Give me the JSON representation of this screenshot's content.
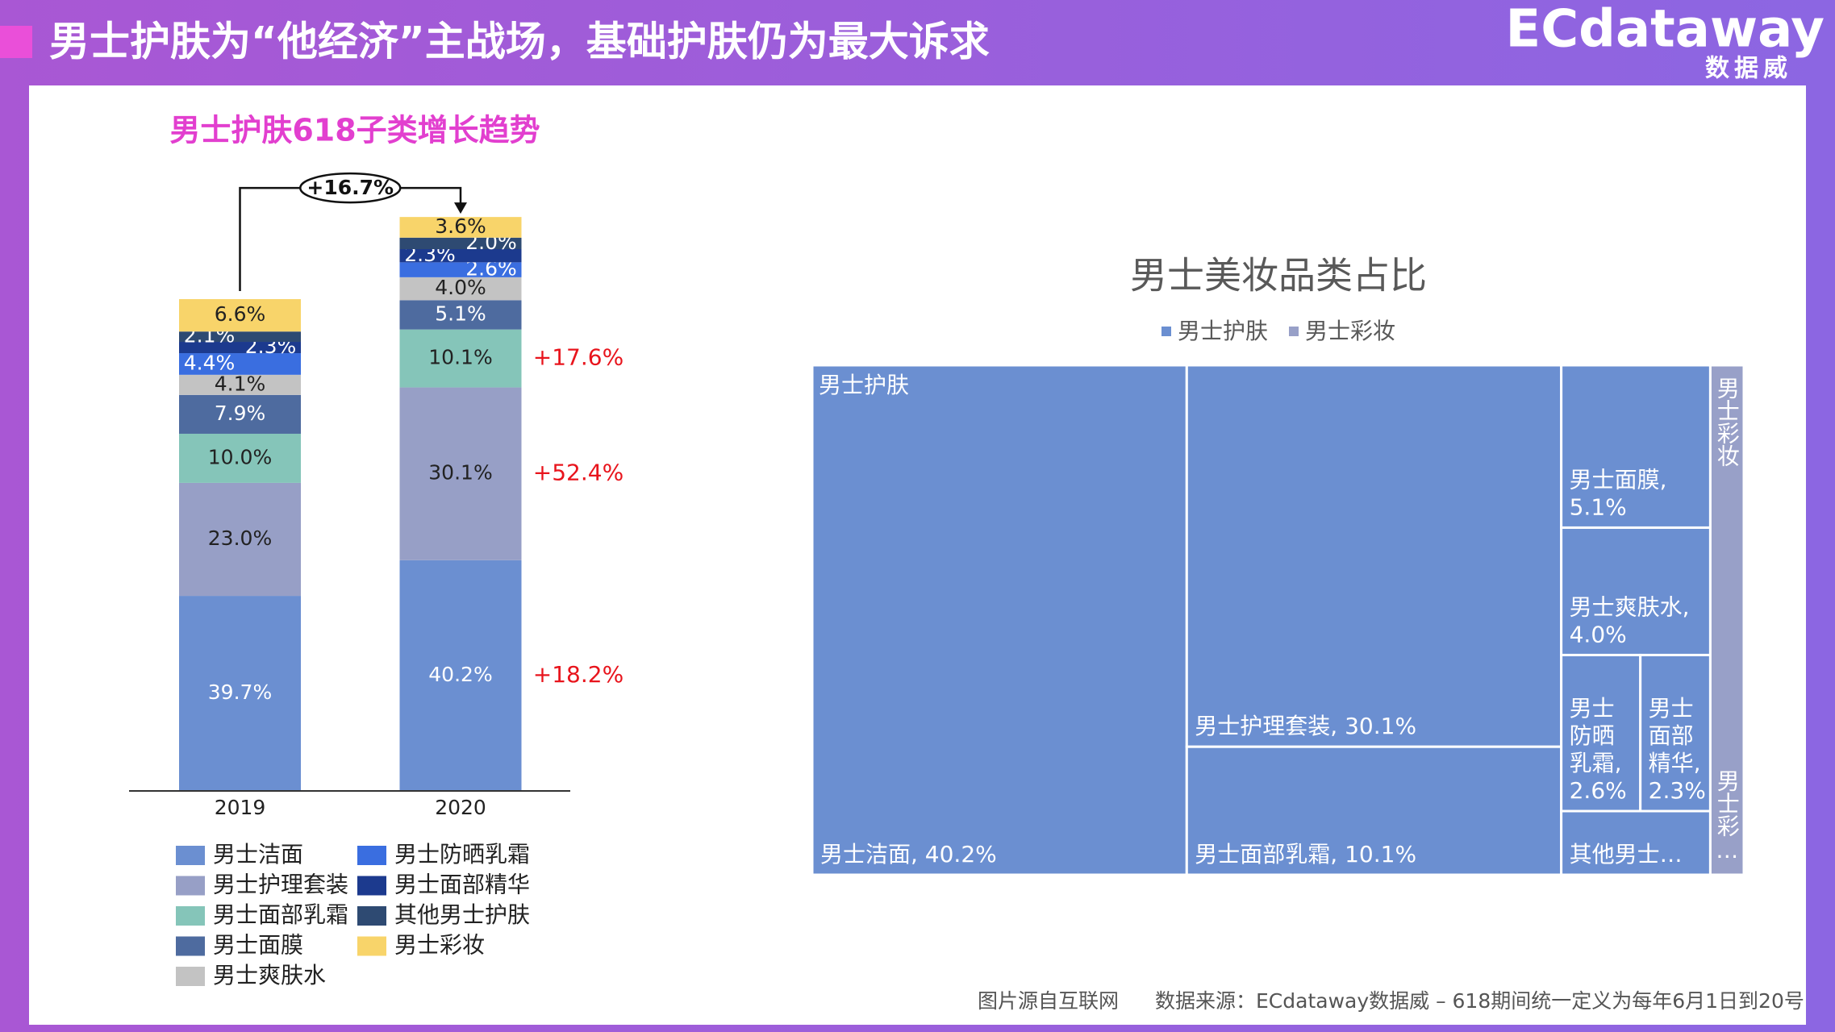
{
  "header": {
    "title": "男士护肤为“他经济”主战场，基础护肤仍为最大诉求",
    "logo": "ECdataway",
    "logo_sub": "数据威"
  },
  "chart_data": [
    {
      "type": "stacked_bar",
      "title": "男士护肤618子类增长趋势",
      "categories": [
        "2019",
        "2020"
      ],
      "growth": {
        "value": 16.7,
        "label": "+16.7%"
      },
      "series": [
        {
          "name": "男士洁面",
          "color": "#6b8fd1",
          "values": [
            39.7,
            40.2
          ],
          "value_labels": [
            "39.7%",
            "40.2%"
          ],
          "growth_label": "+18.2%"
        },
        {
          "name": "男士护理套装",
          "color": "#979fc6",
          "values": [
            23.0,
            30.1
          ],
          "value_labels": [
            "23.0%",
            "30.1%"
          ],
          "growth_label": "+52.4%"
        },
        {
          "name": "男士面部乳霜",
          "color": "#85c5b9",
          "values": [
            10.0,
            10.1
          ],
          "value_labels": [
            "10.0%",
            "10.1%"
          ],
          "growth_label": "+17.6%"
        },
        {
          "name": "男士面膜",
          "color": "#4e6b9f",
          "values": [
            7.9,
            5.1
          ],
          "value_labels": [
            "7.9%",
            "5.1%"
          ]
        },
        {
          "name": "男士爽肤水",
          "color": "#c3c3c3",
          "values": [
            4.1,
            4.0
          ],
          "value_labels": [
            "4.1%",
            "4.0%"
          ]
        },
        {
          "name": "男士防晒乳霜",
          "color": "#3a6ee0",
          "values": [
            4.4,
            2.6
          ],
          "value_labels": [
            "4.4%",
            "2.6%"
          ]
        },
        {
          "name": "男士面部精华",
          "color": "#1c3a8e",
          "values": [
            2.3,
            2.3
          ],
          "value_labels": [
            "2.3%",
            "2.3%"
          ]
        },
        {
          "name": "其他男士护肤",
          "color": "#2e4a72",
          "values": [
            2.1,
            2.0
          ],
          "value_labels": [
            "2.1%",
            "2.0%"
          ]
        },
        {
          "name": "男士彩妆",
          "color": "#f8d46a",
          "values": [
            6.6,
            3.6
          ],
          "value_labels": [
            "6.6%",
            "3.6%"
          ]
        }
      ]
    },
    {
      "type": "treemap",
      "title": "男士美妆品类占比",
      "groups": [
        {
          "name": "男士护肤",
          "color": "#6b8fd1",
          "children": [
            {
              "label": "男士洁面, 40.2%",
              "value": 40.2
            },
            {
              "label": "男士护理套装, 30.1%",
              "value": 30.1
            },
            {
              "label": "男士面部乳霜, 10.1%",
              "value": 10.1
            },
            {
              "label": "男士面膜, 5.1%",
              "value": 5.1
            },
            {
              "label": "男士爽肤水, 4.0%",
              "value": 4.0
            },
            {
              "label": "男士防晒乳霜, 2.6%",
              "value": 2.6
            },
            {
              "label": "男士面部精华, 2.3%",
              "value": 2.3
            },
            {
              "label": "其他男士…",
              "value": 2.0
            }
          ]
        },
        {
          "name": "男士彩妆",
          "color": "#98a0c8",
          "children": [
            {
              "label": "男士彩…",
              "value": 3.6
            }
          ]
        }
      ]
    }
  ],
  "footer": {
    "note": "图片源自互联网",
    "source": "数据来源：ECdataway数据威 – 618期间统一定义为每年6月1日到20号"
  }
}
